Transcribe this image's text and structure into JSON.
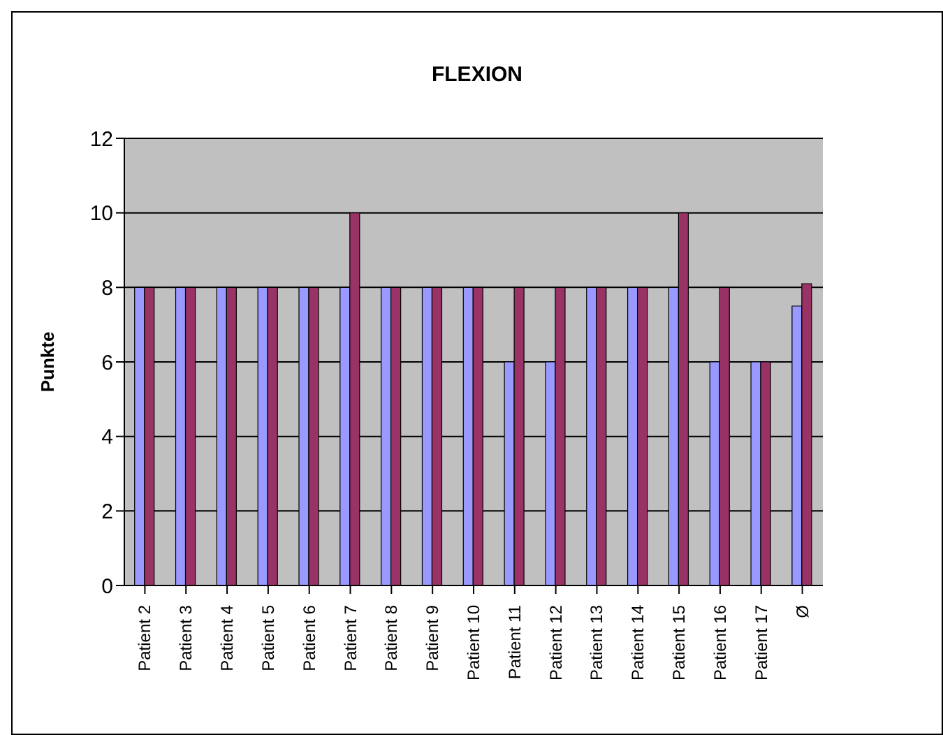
{
  "chart_data": {
    "type": "bar",
    "title": "FLEXION",
    "ylabel": "Punkte",
    "categories": [
      "Patient 2",
      "Patient 3",
      "Patient 4",
      "Patient 5",
      "Patient 6",
      "Patient 7",
      "Patient 8",
      "Patient 9",
      "Patient 10",
      "Patient 11",
      "Patient 12",
      "Patient 13",
      "Patient 14",
      "Patient 15",
      "Patient 16",
      "Patient 17",
      "Ø"
    ],
    "series": [
      {
        "color": "#9999ff",
        "values": [
          8,
          8,
          8,
          8,
          8,
          8,
          8,
          8,
          8,
          6,
          6,
          8,
          8,
          8,
          6,
          6,
          7.5
        ]
      },
      {
        "color": "#993366",
        "values": [
          8,
          8,
          8,
          8,
          8,
          10,
          8,
          8,
          8,
          8,
          8,
          8,
          8,
          10,
          8,
          6,
          8.1
        ]
      }
    ],
    "ylim": [
      0,
      12
    ],
    "yticks": [
      0,
      2,
      4,
      6,
      8,
      10,
      12
    ],
    "grid": "y",
    "legend": false
  }
}
